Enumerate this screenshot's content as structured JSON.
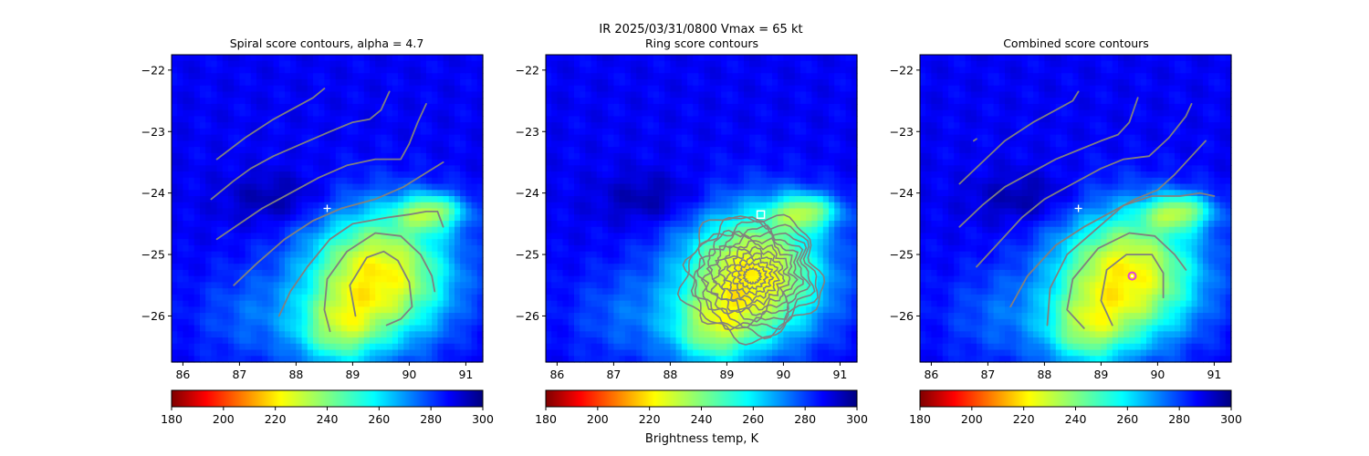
{
  "figure": {
    "suptitle_line1": "IR  2025/03/31/0800    Vmax = 65 kt",
    "colorbar_label": "Brightness temp, K"
  },
  "colormap": {
    "name": "jet_r",
    "min": 180,
    "max": 300,
    "ticks": [
      180,
      200,
      220,
      240,
      260,
      280,
      300
    ]
  },
  "axes_common": {
    "xlim": [
      85.8,
      91.3
    ],
    "ylim": [
      -26.75,
      -21.75
    ],
    "xticks": [
      86,
      87,
      88,
      89,
      90,
      91
    ],
    "yticks": [
      -22,
      -23,
      -24,
      -25,
      -26
    ]
  },
  "chart_data": [
    {
      "type": "heatmap",
      "title": "Spiral score contours, alpha =  4.7",
      "field": "IR brightness temperature (K)",
      "contours": [
        [
          [
            86.6,
            -23.45
          ],
          [
            87.1,
            -23.1
          ],
          [
            87.6,
            -22.8
          ],
          [
            88.0,
            -22.6
          ],
          [
            88.3,
            -22.45
          ],
          [
            88.5,
            -22.3
          ]
        ],
        [
          [
            86.5,
            -24.1
          ],
          [
            86.9,
            -23.8
          ],
          [
            87.2,
            -23.6
          ],
          [
            87.6,
            -23.4
          ],
          [
            88.1,
            -23.2
          ],
          [
            88.6,
            -23.0
          ],
          [
            89.0,
            -22.85
          ],
          [
            89.3,
            -22.8
          ],
          [
            89.5,
            -22.65
          ],
          [
            89.65,
            -22.35
          ]
        ],
        [
          [
            86.6,
            -24.75
          ],
          [
            87.0,
            -24.5
          ],
          [
            87.4,
            -24.25
          ],
          [
            87.9,
            -24.0
          ],
          [
            88.4,
            -23.75
          ],
          [
            88.9,
            -23.55
          ],
          [
            89.4,
            -23.45
          ],
          [
            89.85,
            -23.45
          ],
          [
            90.0,
            -23.2
          ],
          [
            90.15,
            -22.85
          ],
          [
            90.3,
            -22.55
          ]
        ],
        [
          [
            86.9,
            -25.5
          ],
          [
            87.3,
            -25.15
          ],
          [
            87.8,
            -24.75
          ],
          [
            88.3,
            -24.45
          ],
          [
            88.8,
            -24.25
          ],
          [
            89.4,
            -24.1
          ],
          [
            89.9,
            -23.9
          ],
          [
            90.25,
            -23.7
          ],
          [
            90.6,
            -23.5
          ]
        ],
        [
          [
            87.7,
            -26.0
          ],
          [
            87.9,
            -25.6
          ],
          [
            88.2,
            -25.2
          ],
          [
            88.6,
            -24.75
          ],
          [
            89.0,
            -24.5
          ],
          [
            89.6,
            -24.4
          ],
          [
            90.0,
            -24.35
          ],
          [
            90.3,
            -24.3
          ],
          [
            90.5,
            -24.3
          ],
          [
            90.6,
            -24.55
          ]
        ],
        [
          [
            88.6,
            -26.25
          ],
          [
            88.5,
            -25.9
          ],
          [
            88.55,
            -25.4
          ],
          [
            88.9,
            -24.95
          ],
          [
            89.4,
            -24.65
          ],
          [
            89.85,
            -24.7
          ],
          [
            90.2,
            -25.0
          ],
          [
            90.4,
            -25.35
          ],
          [
            90.45,
            -25.6
          ]
        ],
        [
          [
            89.05,
            -26.0
          ],
          [
            88.95,
            -25.5
          ],
          [
            89.25,
            -25.05
          ],
          [
            89.55,
            -24.95
          ],
          [
            89.8,
            -25.1
          ],
          [
            90.0,
            -25.45
          ],
          [
            90.05,
            -25.85
          ],
          [
            89.85,
            -26.05
          ],
          [
            89.6,
            -26.15
          ]
        ]
      ],
      "markers": [
        {
          "shape": "plus",
          "x": 88.55,
          "y": -24.25,
          "color": "#ffffff"
        }
      ]
    },
    {
      "type": "heatmap",
      "title": "Ring score contours",
      "field": "IR brightness temperature (K)",
      "contours": [],
      "contour_region": {
        "shape": "ellipse",
        "cx": 89.45,
        "cy": -25.35,
        "rx": 1.2,
        "ry": 1.0
      },
      "markers": [
        {
          "shape": "square",
          "x": 89.6,
          "y": -24.35,
          "color": "#ffffff"
        }
      ]
    },
    {
      "type": "heatmap",
      "title": "Combined score contours",
      "field": "IR brightness temperature (K)",
      "contours": [
        [
          [
            86.75,
            -23.15
          ],
          [
            86.8,
            -23.12
          ]
        ],
        [
          [
            86.5,
            -23.85
          ],
          [
            86.9,
            -23.5
          ],
          [
            87.3,
            -23.15
          ],
          [
            87.8,
            -22.85
          ],
          [
            88.2,
            -22.65
          ],
          [
            88.5,
            -22.5
          ],
          [
            88.6,
            -22.35
          ]
        ],
        [
          [
            86.5,
            -24.55
          ],
          [
            86.9,
            -24.2
          ],
          [
            87.3,
            -23.9
          ],
          [
            87.8,
            -23.65
          ],
          [
            88.2,
            -23.45
          ],
          [
            88.6,
            -23.3
          ],
          [
            89.0,
            -23.15
          ],
          [
            89.3,
            -23.05
          ],
          [
            89.5,
            -22.85
          ],
          [
            89.65,
            -22.45
          ]
        ],
        [
          [
            86.8,
            -25.2
          ],
          [
            87.2,
            -24.8
          ],
          [
            87.6,
            -24.4
          ],
          [
            88.0,
            -24.1
          ],
          [
            88.5,
            -23.85
          ],
          [
            89.0,
            -23.6
          ],
          [
            89.4,
            -23.45
          ],
          [
            89.85,
            -23.4
          ],
          [
            90.2,
            -23.1
          ],
          [
            90.5,
            -22.75
          ],
          [
            90.6,
            -22.55
          ]
        ],
        [
          [
            87.4,
            -25.85
          ],
          [
            87.7,
            -25.35
          ],
          [
            88.2,
            -24.85
          ],
          [
            88.7,
            -24.55
          ],
          [
            89.2,
            -24.3
          ],
          [
            89.6,
            -24.1
          ],
          [
            90.0,
            -23.95
          ],
          [
            90.3,
            -23.7
          ],
          [
            90.6,
            -23.4
          ],
          [
            90.85,
            -23.15
          ]
        ],
        [
          [
            88.05,
            -26.15
          ],
          [
            88.1,
            -25.55
          ],
          [
            88.4,
            -25.0
          ],
          [
            88.9,
            -24.6
          ],
          [
            89.4,
            -24.2
          ],
          [
            89.9,
            -24.05
          ],
          [
            90.4,
            -24.05
          ],
          [
            90.75,
            -24.0
          ],
          [
            91.0,
            -24.05
          ]
        ],
        [
          [
            88.7,
            -26.2
          ],
          [
            88.4,
            -25.9
          ],
          [
            88.5,
            -25.4
          ],
          [
            88.95,
            -24.9
          ],
          [
            89.5,
            -24.65
          ],
          [
            89.95,
            -24.7
          ],
          [
            90.3,
            -25.0
          ],
          [
            90.5,
            -25.25
          ]
        ],
        [
          [
            89.2,
            -26.15
          ],
          [
            89.0,
            -25.75
          ],
          [
            89.1,
            -25.25
          ],
          [
            89.45,
            -25.0
          ],
          [
            89.9,
            -25.0
          ],
          [
            90.1,
            -25.3
          ],
          [
            90.1,
            -25.7
          ]
        ]
      ],
      "markers": [
        {
          "shape": "plus",
          "x": 88.6,
          "y": -24.25,
          "color": "#ffffff"
        },
        {
          "shape": "circle",
          "x": 89.55,
          "y": -25.35,
          "color": "#e040e0"
        }
      ]
    }
  ]
}
